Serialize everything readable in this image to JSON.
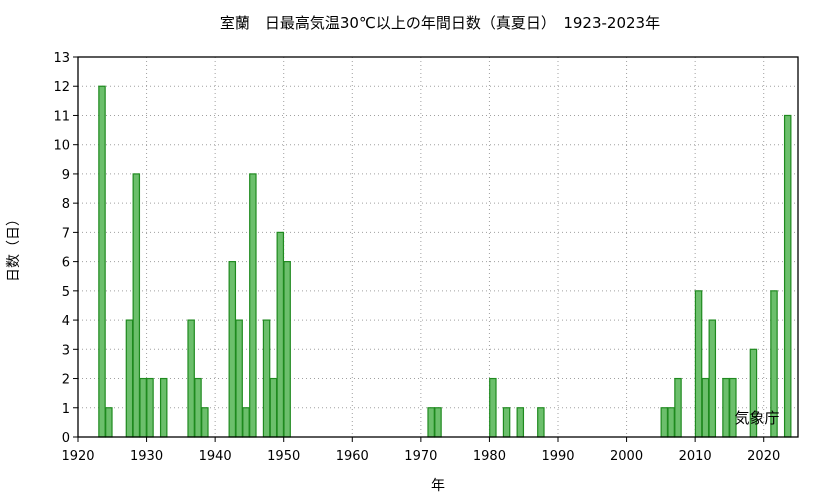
{
  "chart_data": {
    "type": "bar",
    "title": "室蘭　日最高気温30℃以上の年間日数（真夏日）　1923-2023年",
    "xlabel": "年",
    "ylabel": "日数（日）",
    "xlim": [
      1920,
      2025
    ],
    "ylim": [
      0,
      13
    ],
    "x_ticks": [
      1920,
      1930,
      1940,
      1950,
      1960,
      1970,
      1980,
      1990,
      2000,
      2010,
      2020
    ],
    "y_ticks": [
      0,
      1,
      2,
      3,
      4,
      5,
      6,
      7,
      8,
      9,
      10,
      11,
      12,
      13
    ],
    "grid": true,
    "watermark": "気象庁",
    "bar_color": "#6cbf6c",
    "edge_color": "#1f8a1f",
    "x": [
      1923,
      1924,
      1927,
      1928,
      1929,
      1930,
      1932,
      1936,
      1937,
      1938,
      1942,
      1943,
      1944,
      1945,
      1947,
      1948,
      1949,
      1950,
      1971,
      1972,
      1980,
      1982,
      1984,
      1987,
      2005,
      2006,
      2007,
      2010,
      2011,
      2012,
      2014,
      2015,
      2018,
      2021,
      2023
    ],
    "values": [
      12,
      1,
      4,
      9,
      2,
      2,
      2,
      4,
      2,
      1,
      6,
      4,
      1,
      9,
      4,
      2,
      7,
      6,
      1,
      1,
      2,
      1,
      1,
      1,
      1,
      1,
      2,
      5,
      2,
      4,
      2,
      2,
      3,
      5,
      11
    ]
  }
}
